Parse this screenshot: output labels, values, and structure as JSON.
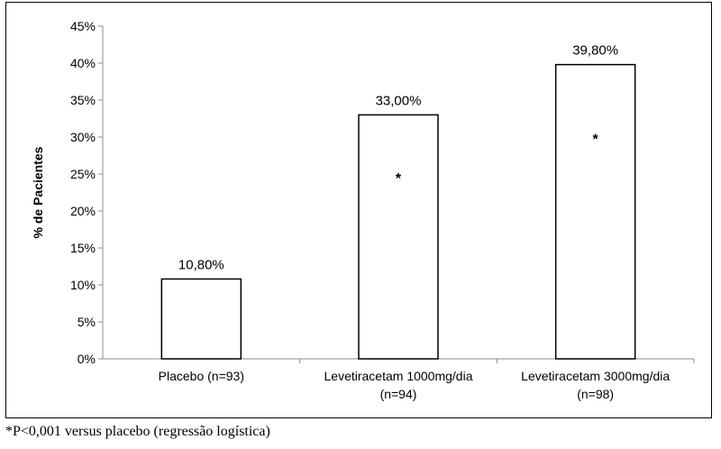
{
  "chart_data": {
    "type": "bar",
    "ylabel": "% de Pacientes",
    "ylim": [
      0,
      45
    ],
    "ytick_step": 5,
    "ytick_labels": [
      "0%",
      "5%",
      "10%",
      "15%",
      "20%",
      "25%",
      "30%",
      "35%",
      "40%",
      "45%"
    ],
    "grid": false,
    "categories": [
      [
        "Placebo (n=93)"
      ],
      [
        "Levetiracetam 1000mg/dia",
        "(n=94)"
      ],
      [
        "Levetiracetam 3000mg/dia",
        "(n=98)"
      ]
    ],
    "values": [
      10.8,
      33.0,
      39.8
    ],
    "data_labels": [
      "10,80%",
      "33,00%",
      "39,80%"
    ],
    "significance_markers": [
      "",
      "*",
      "*"
    ],
    "bar_fill": "#ffffff",
    "bar_stroke": "#000000"
  },
  "footnote": "*P<0,001 versus placebo (regressão logística)"
}
